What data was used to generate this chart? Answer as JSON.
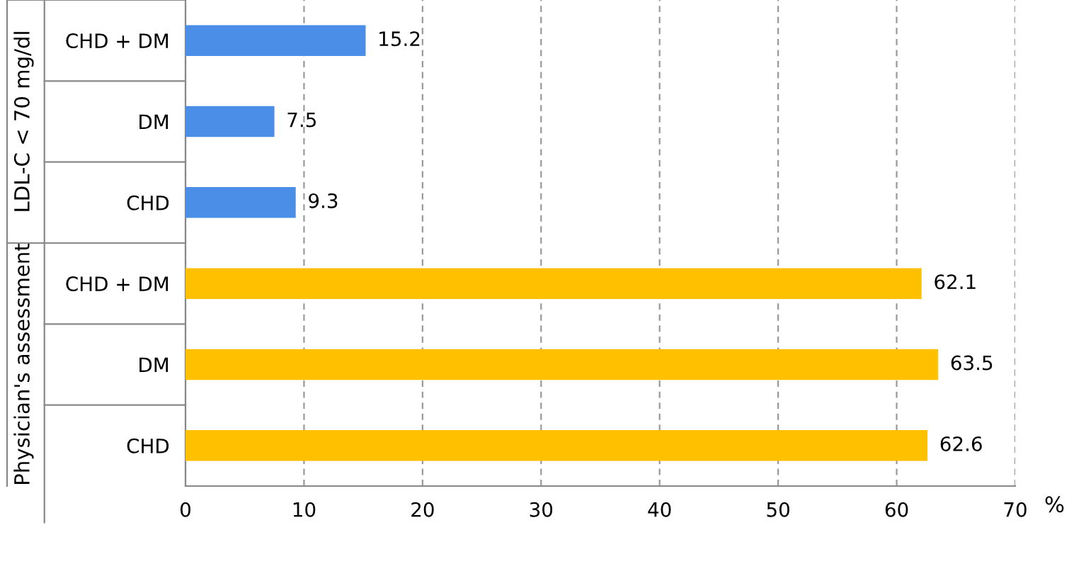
{
  "chart_data": {
    "type": "bar",
    "orientation": "horizontal",
    "categories": [
      "CHD + DM",
      "DM",
      "CHD",
      "CHD + DM",
      "DM",
      "CHD"
    ],
    "values": [
      15.2,
      7.5,
      9.3,
      62.1,
      63.5,
      62.6
    ],
    "colors": [
      "#4a8ee8",
      "#4a8ee8",
      "#4a8ee8",
      "#ffc000",
      "#ffc000",
      "#ffc000"
    ],
    "data_labels": true,
    "xlabel": "%",
    "xlim": [
      0,
      70
    ],
    "xticks": [
      0,
      10,
      20,
      30,
      40,
      50,
      60,
      70
    ],
    "grid": "x",
    "annotations": [
      "LDL-C < 70 mg/dl",
      "Physician's assessment"
    ]
  }
}
